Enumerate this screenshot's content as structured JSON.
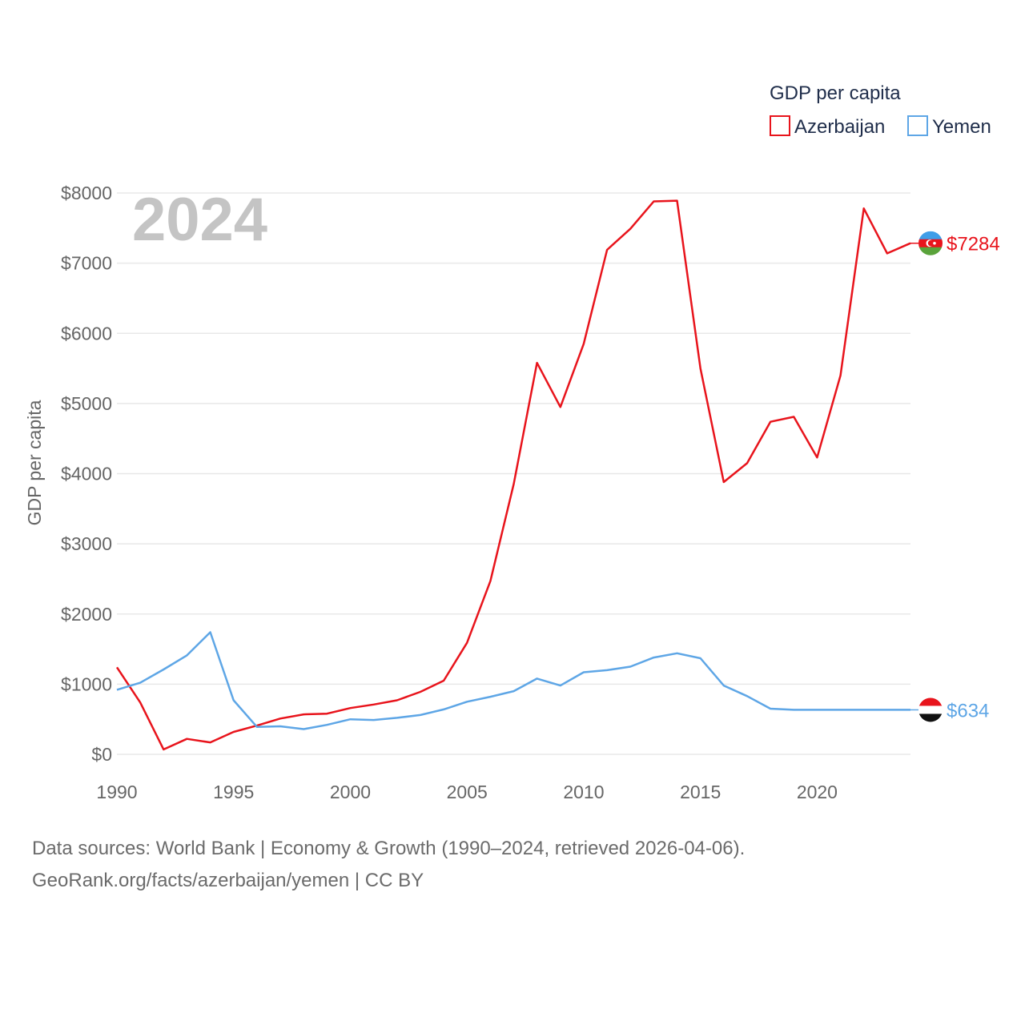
{
  "chart_data": {
    "type": "line",
    "year_label": "2024",
    "ylabel": "GDP per capita",
    "xlabel": "",
    "legend": {
      "title": "GDP per capita",
      "position": "top-right"
    },
    "xlim": [
      1990,
      2024
    ],
    "ylim": [
      0,
      8000
    ],
    "x_ticks": [
      1990,
      1995,
      2000,
      2005,
      2010,
      2015,
      2020
    ],
    "y_ticks": [
      0,
      1000,
      2000,
      3000,
      4000,
      5000,
      6000,
      7000,
      8000
    ],
    "y_tick_labels": [
      "$0",
      "$1000",
      "$2000",
      "$3000",
      "$4000",
      "$5000",
      "$6000",
      "$7000",
      "$8000"
    ],
    "x": [
      1990,
      1991,
      1992,
      1993,
      1994,
      1995,
      1996,
      1997,
      1998,
      1999,
      2000,
      2001,
      2002,
      2003,
      2004,
      2005,
      2006,
      2007,
      2008,
      2009,
      2010,
      2011,
      2012,
      2013,
      2014,
      2015,
      2016,
      2017,
      2018,
      2019,
      2020,
      2021,
      2022,
      2023,
      2024
    ],
    "series": [
      {
        "name": "Azerbaijan",
        "color": "#e8141c",
        "end_label": "$7284",
        "flag": "azerbaijan-flag",
        "values": [
          1240,
          740,
          70,
          220,
          170,
          320,
          410,
          510,
          570,
          580,
          660,
          710,
          770,
          890,
          1050,
          1590,
          2470,
          3850,
          5580,
          4950,
          5850,
          7190,
          7490,
          7880,
          7890,
          5500,
          3880,
          4150,
          4740,
          4810,
          4230,
          5400,
          7780,
          7140,
          7284
        ]
      },
      {
        "name": "Yemen",
        "color": "#5ea6e6",
        "end_label": "$634",
        "flag": "yemen-flag",
        "values": [
          920,
          1020,
          1210,
          1410,
          1740,
          770,
          390,
          400,
          360,
          420,
          500,
          490,
          520,
          560,
          640,
          750,
          820,
          900,
          1080,
          980,
          1170,
          1200,
          1250,
          1380,
          1440,
          1370,
          980,
          830,
          650,
          634,
          634,
          634,
          634,
          634,
          634
        ]
      }
    ]
  },
  "footer": {
    "line1": "Data sources: World Bank | Economy & Growth (1990–2024, retrieved 2026-04-06).",
    "line2": "GeoRank.org/facts/azerbaijan/yemen | CC BY"
  }
}
